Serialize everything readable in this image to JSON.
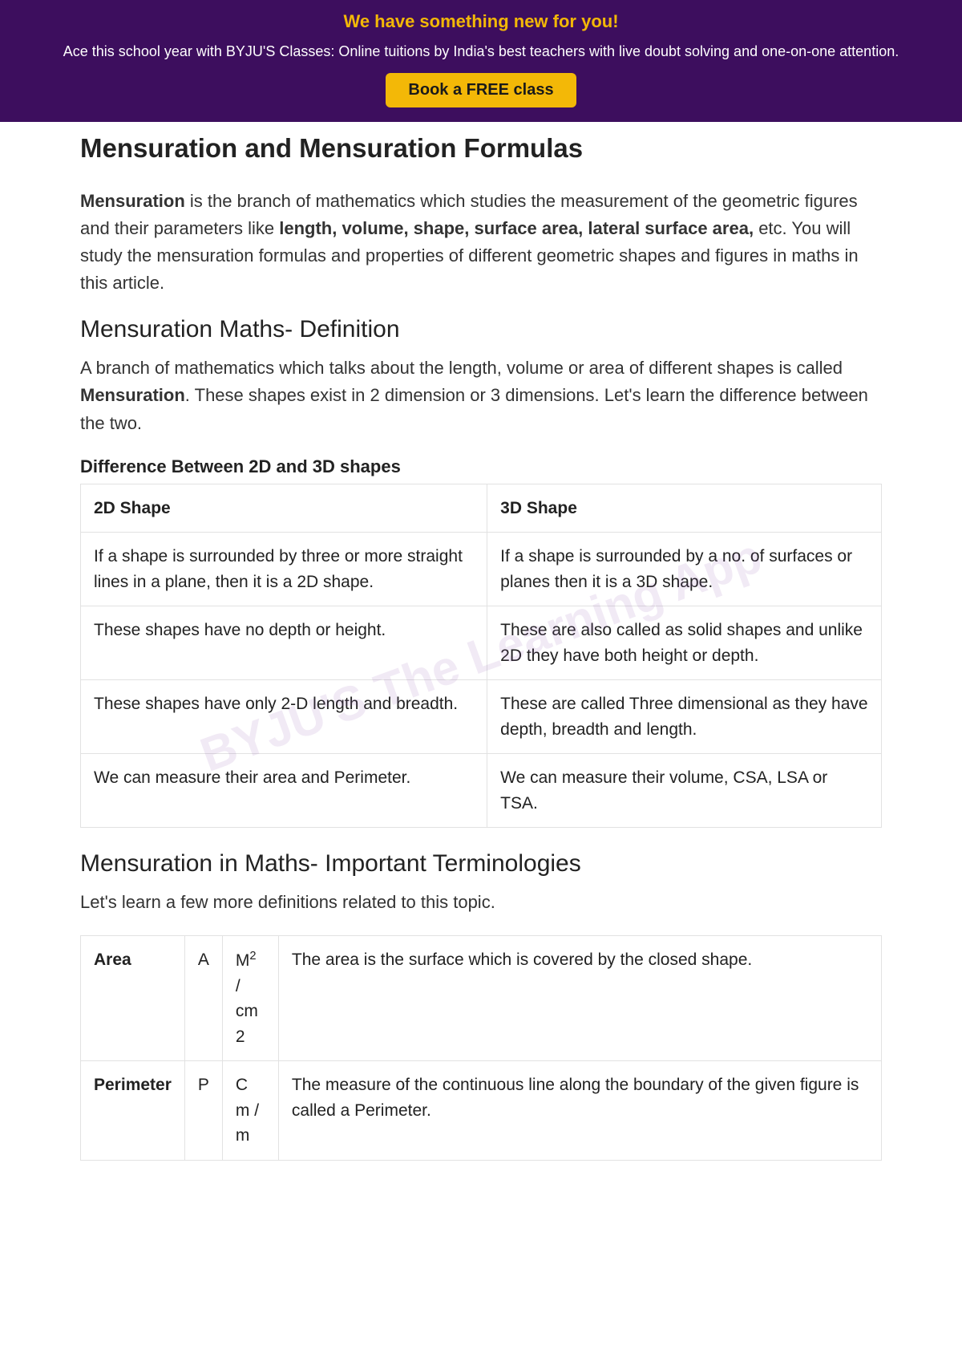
{
  "banner": {
    "headline": "We have something new for you!",
    "sub": "Ace this school year with BYJU'S Classes: Online tuitions by India's best teachers with live doubt solving and one-on-one attention.",
    "button": "Book a FREE class",
    "bg_color": "#3d0e5e",
    "headline_color": "#f3b807",
    "button_bg": "#f3b807",
    "button_text_color": "#1a1a1a"
  },
  "title": "Mensuration and Mensuration Formulas",
  "intro": {
    "lead": "Mensuration",
    "text1": " is the branch of mathematics which studies the measurement of the geometric figures and their parameters like ",
    "bold": "length, volume, shape, surface area, lateral surface area,",
    "text2": " etc. You will study the mensuration formulas and properties of different geometric shapes and figures in maths in this article."
  },
  "def_heading": "Mensuration Maths- Definition",
  "def_para": {
    "text1": "A branch of mathematics which talks about the length, volume or area of different shapes is called ",
    "bold": "Mensuration",
    "text2": ". These shapes exist in 2 dimension or 3 dimensions. Let's learn the difference between the two."
  },
  "diff_heading": "Difference Between 2D and 3D shapes",
  "diff_table": {
    "headers": [
      "2D Shape",
      "3D Shape"
    ],
    "rows": [
      [
        "If a shape is surrounded by three or more straight lines in a plane, then it is a 2D shape.",
        "If a shape is surrounded by a no. of surfaces or planes then it is a 3D shape."
      ],
      [
        "These shapes have no depth or height.",
        "These are also called as solid shapes and unlike 2D they have both height or depth."
      ],
      [
        "These shapes have only 2-D length and breadth.",
        "These are called Three dimensional as they have depth, breadth and length."
      ],
      [
        "We can measure their area and Perimeter.",
        "We can measure their volume, CSA, LSA or TSA."
      ]
    ],
    "border_color": "#e2e2e2"
  },
  "terms_heading": "Mensuration in Maths- Important Terminologies",
  "terms_intro": "Let's learn a few more definitions related to this topic.",
  "terms_table": {
    "rows": [
      {
        "name": "Area",
        "symbol": "A",
        "unit_html": "M<sup>2</sup> / cm 2",
        "desc": "The area is the surface which is covered by the closed shape."
      },
      {
        "name": "Perimeter",
        "symbol": "P",
        "unit_html": "C m / m",
        "desc": "The measure of the continuous line along the boundary of the given figure is called a Perimeter."
      }
    ],
    "col_widths": [
      "110px",
      "40px",
      "70px",
      "auto"
    ]
  },
  "watermark": "BYJU'S  The Learning App"
}
